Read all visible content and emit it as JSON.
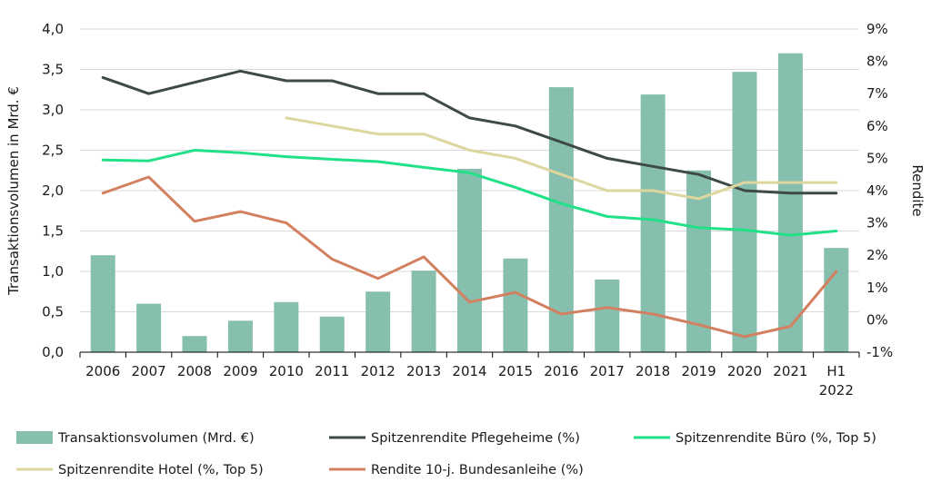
{
  "chart_data": {
    "type": "bar+line",
    "title": "",
    "categories": [
      "2006",
      "2007",
      "2008",
      "2009",
      "2010",
      "2011",
      "2012",
      "2013",
      "2014",
      "2015",
      "2016",
      "2017",
      "2018",
      "2019",
      "2020",
      "2021",
      "H1 2022"
    ],
    "bar_series": {
      "name": "Transaktionsvolumen (Mrd. €)",
      "color": "#86BFAE",
      "values": [
        1.2,
        0.6,
        0.2,
        0.39,
        0.62,
        0.44,
        0.75,
        1.01,
        2.27,
        1.16,
        3.28,
        0.9,
        3.19,
        2.25,
        3.47,
        3.7,
        1.29
      ]
    },
    "line_series": [
      {
        "name": "Spitzenrendite Pflegeheime (%)",
        "color": "#3D4A47",
        "values": [
          7.5,
          7.0,
          7.35,
          7.7,
          7.4,
          7.4,
          7.0,
          7.0,
          6.25,
          6.0,
          5.5,
          5.0,
          4.75,
          4.5,
          4.0,
          3.92,
          3.92
        ]
      },
      {
        "name": "Spitzenrendite Büro (%, Top 5)",
        "color": "#22E088",
        "values": [
          4.95,
          4.92,
          5.25,
          5.17,
          5.05,
          4.97,
          4.9,
          4.72,
          4.55,
          4.1,
          3.6,
          3.2,
          3.1,
          2.85,
          2.78,
          2.62,
          2.75
        ]
      },
      {
        "name": "Spitzenrendite Hotel (%, Top 5)",
        "color": "#DDD69E",
        "values": [
          null,
          null,
          null,
          null,
          6.25,
          6.0,
          5.75,
          5.75,
          5.25,
          5.0,
          4.5,
          4.0,
          4.0,
          3.75,
          4.25,
          4.25,
          4.25
        ]
      },
      {
        "name": "Rendite 10-j. Bundesanleihe (%)",
        "color": "#D2805F",
        "values": [
          3.92,
          4.42,
          3.05,
          3.35,
          3.0,
          1.88,
          1.28,
          1.95,
          0.55,
          0.85,
          0.18,
          0.38,
          0.18,
          -0.15,
          -0.52,
          -0.2,
          1.5
        ]
      }
    ],
    "y_left": {
      "label": "Transaktionsvolumen in Mrd. €",
      "ylim": [
        0,
        4
      ],
      "ticks": [
        "0,0",
        "0,5",
        "1,0",
        "1,5",
        "2,0",
        "2,5",
        "3,0",
        "3,5",
        "4,0"
      ]
    },
    "y_right": {
      "label": "Rendite",
      "ylim": [
        -1,
        9
      ],
      "ticks": [
        "-1%",
        "0%",
        "1%",
        "2%",
        "3%",
        "4%",
        "5%",
        "6%",
        "7%",
        "8%",
        "9%"
      ]
    },
    "x_tick_labels": [
      [
        "2006"
      ],
      [
        "2007"
      ],
      [
        "2008"
      ],
      [
        "2009"
      ],
      [
        "2010"
      ],
      [
        "2011"
      ],
      [
        "2012"
      ],
      [
        "2013"
      ],
      [
        "2014"
      ],
      [
        "2015"
      ],
      [
        "2016"
      ],
      [
        "2017"
      ],
      [
        "2018"
      ],
      [
        "2019"
      ],
      [
        "2020"
      ],
      [
        "2021"
      ],
      [
        "H1",
        "2022"
      ]
    ],
    "legend_position": "bottom",
    "grid": "horizontal"
  }
}
